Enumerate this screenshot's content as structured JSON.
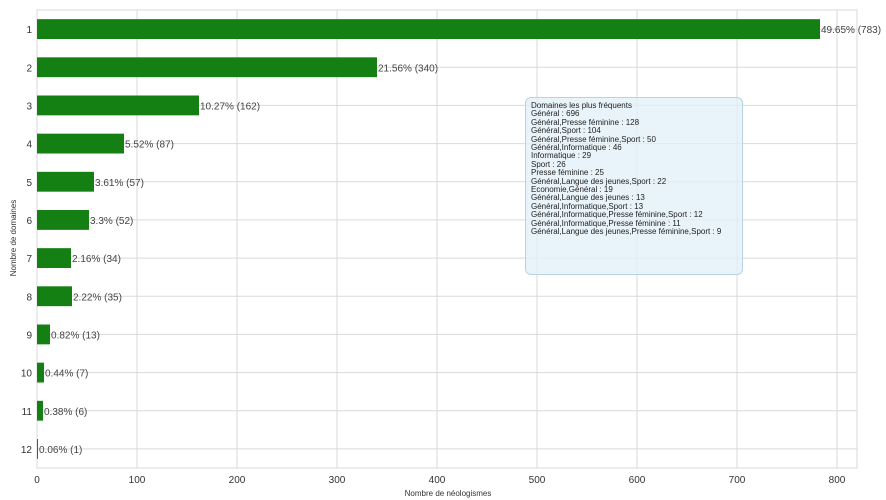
{
  "chart_data": {
    "type": "bar",
    "orientation": "horizontal",
    "categories": [
      "1",
      "2",
      "3",
      "4",
      "5",
      "6",
      "7",
      "8",
      "9",
      "10",
      "11",
      "12"
    ],
    "values": [
      783,
      340,
      162,
      87,
      57,
      52,
      34,
      35,
      13,
      7,
      6,
      1
    ],
    "data_labels": [
      "49.65% (783)",
      "21.56% (340)",
      "10.27% (162)",
      "5.52% (87)",
      "3.61% (57)",
      "3.3% (52)",
      "2.16% (34)",
      "2.22% (35)",
      "0.82% (13)",
      "0.44% (7)",
      "0.38% (6)",
      "0.06% (1)"
    ],
    "xlabel": "Nombre de néologismes",
    "ylabel": "Nombre de domaines",
    "xlim": [
      0,
      820
    ],
    "xticks": [
      0,
      100,
      200,
      300,
      400,
      500,
      600,
      700,
      800
    ],
    "grid": true,
    "bar_color": "#148014",
    "annotation": {
      "title": "Domaines les plus fréquents",
      "lines": [
        "Général : 696",
        "Général,Presse féminine : 128",
        "Général,Sport : 104",
        "Général,Presse féminine,Sport : 50",
        "Général,Informatique : 46",
        "Informatique : 29",
        "Sport : 26",
        "Presse féminine : 25",
        "Général,Langue des jeunes,Sport : 22",
        "Economie,Général : 19",
        "Général,Langue des jeunes : 13",
        "Général,Informatique,Sport : 13",
        "Général,Informatique,Presse féminine,Sport : 12",
        "Général,Informatique,Presse féminine : 11",
        "Général,Langue des jeunes,Presse féminine,Sport : 9"
      ]
    }
  }
}
